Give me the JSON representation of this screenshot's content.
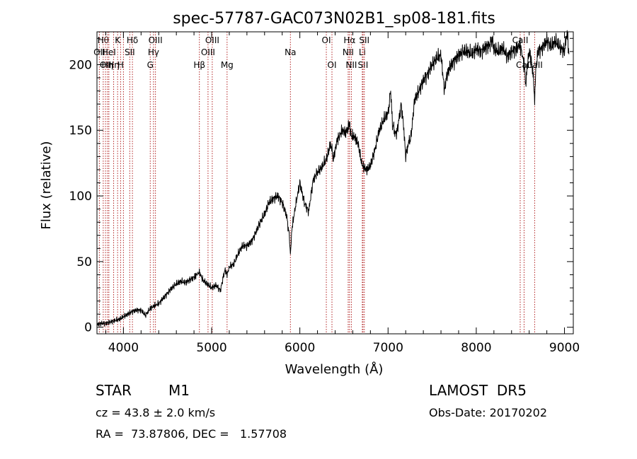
{
  "chart_data": {
    "type": "line",
    "title": "spec-57787-GAC073N02B1_sp08-181.fits",
    "xlabel": "Wavelength (Å)",
    "ylabel": "Flux (relative)",
    "xlim": [
      3700,
      9100
    ],
    "ylim": [
      -5,
      225
    ],
    "xticks": [
      4000,
      5000,
      6000,
      7000,
      8000,
      9000
    ],
    "yticks": [
      0,
      50,
      100,
      150,
      200
    ],
    "line_color": "#000000",
    "marker_color": "#b22222",
    "series": [
      {
        "x": [
          3700,
          3750,
          3800,
          3850,
          3900,
          3950,
          4000,
          4050,
          4100,
          4150,
          4200,
          4250,
          4300,
          4340,
          4400,
          4450,
          4500,
          4550,
          4600,
          4650,
          4700,
          4750,
          4800,
          4861,
          4900,
          4950,
          5000,
          5050,
          5100,
          5150,
          5175,
          5200,
          5250,
          5300,
          5350,
          5400,
          5450,
          5500,
          5550,
          5600,
          5650,
          5700,
          5750,
          5800,
          5850,
          5880,
          5893,
          5910,
          5950,
          6000,
          6050,
          6100,
          6150,
          6200,
          6250,
          6300,
          6350,
          6380,
          6420,
          6480,
          6520,
          6550,
          6563,
          6580,
          6620,
          6660,
          6700,
          6720,
          6760,
          6800,
          6850,
          6900,
          6950,
          7000,
          7030,
          7050,
          7080,
          7100,
          7150,
          7180,
          7200,
          7230,
          7260,
          7300,
          7350,
          7400,
          7450,
          7500,
          7550,
          7600,
          7640,
          7660,
          7700,
          7750,
          7800,
          7850,
          7900,
          7950,
          8000,
          8050,
          8100,
          8150,
          8184,
          8200,
          8250,
          8300,
          8350,
          8400,
          8450,
          8498,
          8542,
          8560,
          8580,
          8600,
          8620,
          8640,
          8662,
          8680,
          8700,
          8750,
          8800,
          8850,
          8900,
          8950,
          9000,
          9030,
          9050
        ],
        "y": [
          2,
          3,
          3,
          4,
          5,
          6,
          8,
          10,
          12,
          13,
          13,
          9,
          14,
          16,
          18,
          22,
          26,
          30,
          33,
          35,
          34,
          36,
          38,
          42,
          36,
          33,
          30,
          32,
          28,
          44,
          40,
          46,
          48,
          56,
          62,
          62,
          65,
          72,
          80,
          86,
          95,
          98,
          100,
          95,
          85,
          70,
          55,
          75,
          92,
          110,
          95,
          88,
          112,
          118,
          122,
          128,
          140,
          128,
          142,
          150,
          148,
          153,
          155,
          146,
          145,
          140,
          125,
          122,
          120,
          123,
          135,
          150,
          158,
          163,
          180,
          155,
          148,
          148,
          170,
          150,
          130,
          140,
          145,
          173,
          180,
          188,
          193,
          200,
          205,
          207,
          180,
          190,
          198,
          203,
          207,
          210,
          210,
          208,
          212,
          210,
          213,
          215,
          219,
          212,
          210,
          213,
          206,
          210,
          212,
          215,
          200,
          185,
          200,
          210,
          205,
          195,
          175,
          200,
          210,
          213,
          218,
          214,
          218,
          213,
          210,
          225,
          208
        ]
      }
    ],
    "lines": [
      {
        "x": 3727,
        "label": "OII",
        "row": 2
      },
      {
        "x": 3771,
        "label": "Hθ",
        "row": 1
      },
      {
        "x": 3797,
        "label": "OII",
        "row": 3
      },
      {
        "x": 3820,
        "label": "Hη",
        "row": 3
      },
      {
        "x": 3835,
        "label": "HeI",
        "row": 2
      },
      {
        "x": 3889,
        "label": "Hη",
        "row": 3
      },
      {
        "x": 3934,
        "label": "K",
        "row": 1
      },
      {
        "x": 3968,
        "label": "H",
        "row": 3
      },
      {
        "x": 4000,
        "label": "",
        "row": 0
      },
      {
        "x": 4072,
        "label": "SII",
        "row": 2
      },
      {
        "x": 4102,
        "label": "Hδ",
        "row": 1
      },
      {
        "x": 4304,
        "label": "G",
        "row": 3
      },
      {
        "x": 4341,
        "label": "Hγ",
        "row": 2
      },
      {
        "x": 4363,
        "label": "OIII",
        "row": 1
      },
      {
        "x": 4861,
        "label": "Hβ",
        "row": 3
      },
      {
        "x": 4959,
        "label": "OIII",
        "row": 2
      },
      {
        "x": 5007,
        "label": "OIII",
        "row": 1
      },
      {
        "x": 5175,
        "label": "Mg",
        "row": 3
      },
      {
        "x": 5893,
        "label": "Na",
        "row": 2
      },
      {
        "x": 6300,
        "label": "OI",
        "row": 1
      },
      {
        "x": 6364,
        "label": "OI",
        "row": 3
      },
      {
        "x": 6548,
        "label": "NII",
        "row": 2
      },
      {
        "x": 6563,
        "label": "Hα",
        "row": 1
      },
      {
        "x": 6584,
        "label": "NII",
        "row": 3
      },
      {
        "x": 6708,
        "label": "Li",
        "row": 2
      },
      {
        "x": 6716,
        "label": "SII",
        "row": 3
      },
      {
        "x": 6731,
        "label": "SII",
        "row": 1
      },
      {
        "x": 8498,
        "label": "CaII",
        "row": 1
      },
      {
        "x": 8542,
        "label": "CaII",
        "row": 3
      },
      {
        "x": 8662,
        "label": "CaII",
        "row": 3
      }
    ]
  },
  "info": {
    "object_class": "STAR",
    "subclass": "M1",
    "survey": "LAMOST  DR5",
    "redshift_text": "cz = 43.8 ± 2.0 km/s",
    "obs_date": "Obs-Date: 20170202",
    "coords": "RA =  73.87806, DEC =   1.57708"
  }
}
